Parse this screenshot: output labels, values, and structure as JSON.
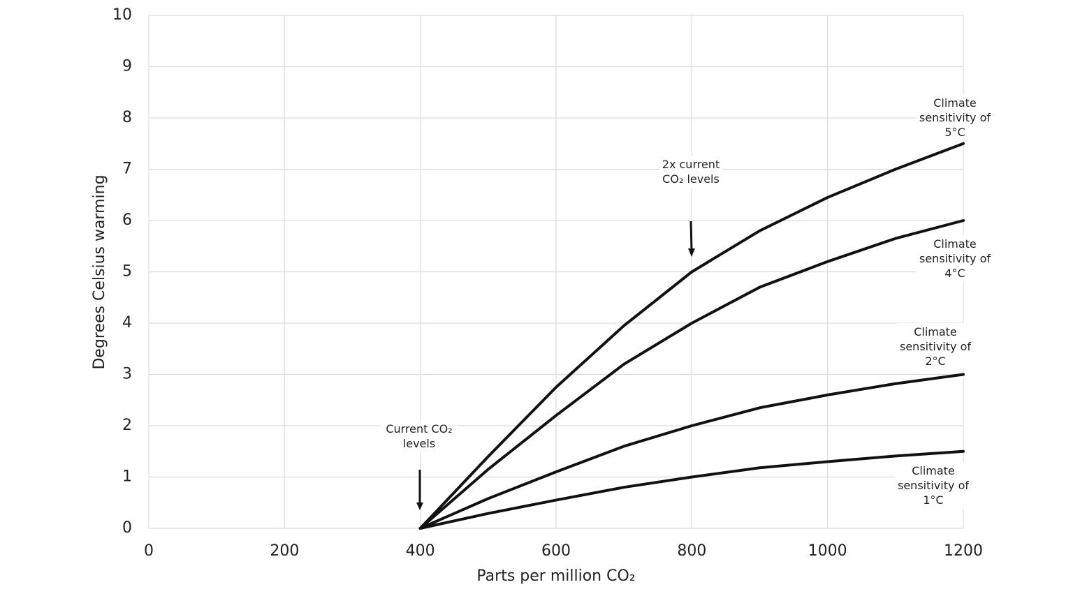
{
  "chart_data": {
    "type": "line",
    "x_label": "Parts per million CO₂",
    "y_label": "Degrees Celsius warming",
    "x": [
      400,
      500,
      600,
      700,
      800,
      900,
      1000,
      1100,
      1200
    ],
    "series": [
      {
        "name": "Climate sensitivity of 5°C",
        "color": "#111111",
        "values": [
          0,
          1.4,
          2.75,
          3.95,
          5.0,
          5.8,
          6.45,
          7.0,
          7.5
        ]
      },
      {
        "name": "Climate sensitivity of 4°C",
        "color": "#111111",
        "values": [
          0,
          1.15,
          2.2,
          3.2,
          4.0,
          4.7,
          5.2,
          5.65,
          6.0
        ]
      },
      {
        "name": "Climate sensitivity of 2°C",
        "color": "#111111",
        "values": [
          0,
          0.58,
          1.1,
          1.6,
          2.0,
          2.35,
          2.6,
          2.82,
          3.0
        ]
      },
      {
        "name": "Climate sensitivity of 1°C",
        "color": "#111111",
        "values": [
          0,
          0.29,
          0.55,
          0.8,
          1.0,
          1.18,
          1.3,
          1.41,
          1.5
        ]
      }
    ],
    "annotations": [
      "Current CO₂ levels",
      "2x current CO₂ levels"
    ],
    "xlim": [
      0,
      1200
    ],
    "xticks": [
      0,
      200,
      400,
      600,
      800,
      1000,
      1200
    ],
    "ylim": [
      0,
      10
    ],
    "yticks": [
      0,
      1,
      2,
      3,
      4,
      5,
      6,
      7,
      8,
      9,
      10
    ],
    "grid": true
  }
}
